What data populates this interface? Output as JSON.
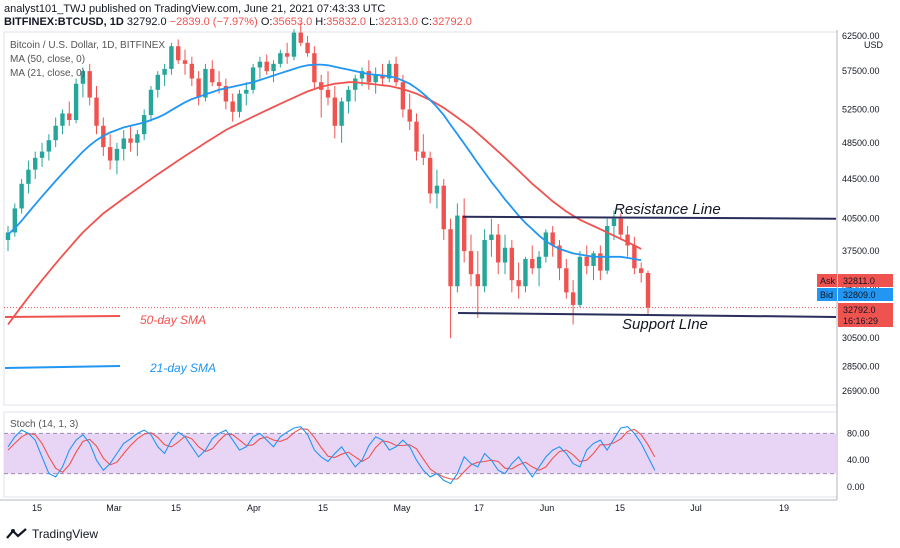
{
  "header": {
    "line1_prefix": "analyst101_TWJ published on TradingView.com, June 21, 2021 07:43:33 UTC",
    "symbol": "BITFINEX:BTCUSD, 1D",
    "last": "32792.0",
    "change": "−2839.0 (−7.97%)",
    "o_label": "O:",
    "o_value": "35653.0",
    "h_label": "H:",
    "h_value": "35832.0",
    "l_label": "L:",
    "l_value": "32313.0",
    "c_label": "C:",
    "c_value": "32792.0"
  },
  "legend": {
    "title": "Bitcoin / U.S. Dollar, 1D, BITFINEX",
    "ma50": "MA (50, close, 0)",
    "ma21": "MA (21, close, 0)",
    "stoch": "Stoch (14, 1, 3)"
  },
  "annotations": {
    "resistance": "Resistance Line",
    "support": "Support LIne",
    "sma50": "50-day SMA",
    "sma21": "21-day SMA"
  },
  "price_tags": {
    "ask_label": "Ask",
    "ask_value": "32811.0",
    "bid_label": "Bid",
    "bid_value": "32809.0",
    "last_value": "32792.0",
    "countdown": "16:16:29",
    "currency": "USD"
  },
  "footer": {
    "brand": "TradingView"
  },
  "colors": {
    "up": "#26a69a",
    "down": "#ef5350",
    "ma50": "#ef5350",
    "ma21": "#2196f3",
    "stochK": "#2196f3",
    "stochD": "#ef5350",
    "band": "#e6d0f5",
    "trend": "#2a2e5a"
  },
  "chart_data": {
    "type": "candlestick",
    "price_axis_ticks": [
      "62500.00",
      "57500.00",
      "52500.00",
      "48500.00",
      "44500.00",
      "40500.00",
      "37500.00",
      "34500.00",
      "30500.00",
      "28500.00",
      "26900.00"
    ],
    "stoch_axis_ticks": [
      "80.00",
      "40.00",
      "0.00"
    ],
    "time_axis_ticks": [
      "15",
      "Mar",
      "15",
      "Apr",
      "15",
      "May",
      "17",
      "Jun",
      "15",
      "Jul",
      "19"
    ],
    "resistance_level": 40500,
    "support_level": 32300,
    "candles": [
      {
        "o": 38500,
        "h": 39800,
        "l": 37500,
        "c": 39200
      },
      {
        "o": 39200,
        "h": 42000,
        "l": 38800,
        "c": 41500
      },
      {
        "o": 41500,
        "h": 44500,
        "l": 41000,
        "c": 44000
      },
      {
        "o": 44000,
        "h": 46500,
        "l": 43000,
        "c": 45500
      },
      {
        "o": 45500,
        "h": 47500,
        "l": 44500,
        "c": 46800
      },
      {
        "o": 46800,
        "h": 48500,
        "l": 45800,
        "c": 47500
      },
      {
        "o": 47500,
        "h": 49500,
        "l": 46500,
        "c": 48800
      },
      {
        "o": 48800,
        "h": 51500,
        "l": 48000,
        "c": 50500
      },
      {
        "o": 50500,
        "h": 52500,
        "l": 49500,
        "c": 52000
      },
      {
        "o": 52000,
        "h": 53500,
        "l": 50500,
        "c": 51200
      },
      {
        "o": 51200,
        "h": 56500,
        "l": 50800,
        "c": 55800
      },
      {
        "o": 55800,
        "h": 58000,
        "l": 54000,
        "c": 57500
      },
      {
        "o": 57500,
        "h": 58500,
        "l": 53000,
        "c": 54000
      },
      {
        "o": 54000,
        "h": 55500,
        "l": 49500,
        "c": 50500
      },
      {
        "o": 50500,
        "h": 51500,
        "l": 47000,
        "c": 48000
      },
      {
        "o": 48000,
        "h": 49500,
        "l": 45500,
        "c": 46500
      },
      {
        "o": 46500,
        "h": 48500,
        "l": 45000,
        "c": 47800
      },
      {
        "o": 47800,
        "h": 50000,
        "l": 46500,
        "c": 49000
      },
      {
        "o": 49000,
        "h": 50500,
        "l": 47500,
        "c": 48500
      },
      {
        "o": 48500,
        "h": 50000,
        "l": 47000,
        "c": 49500
      },
      {
        "o": 49500,
        "h": 52500,
        "l": 48800,
        "c": 51800
      },
      {
        "o": 51800,
        "h": 55500,
        "l": 51000,
        "c": 55000
      },
      {
        "o": 55000,
        "h": 57500,
        "l": 54000,
        "c": 57000
      },
      {
        "o": 57000,
        "h": 58500,
        "l": 55500,
        "c": 57800
      },
      {
        "o": 57800,
        "h": 61500,
        "l": 57000,
        "c": 61000
      },
      {
        "o": 61000,
        "h": 62000,
        "l": 58500,
        "c": 59000
      },
      {
        "o": 59000,
        "h": 60500,
        "l": 57000,
        "c": 58500
      },
      {
        "o": 58500,
        "h": 59500,
        "l": 55500,
        "c": 56500
      },
      {
        "o": 56500,
        "h": 57500,
        "l": 53000,
        "c": 54000
      },
      {
        "o": 54000,
        "h": 58500,
        "l": 53500,
        "c": 57800
      },
      {
        "o": 57800,
        "h": 59000,
        "l": 55500,
        "c": 56000
      },
      {
        "o": 56000,
        "h": 57500,
        "l": 54500,
        "c": 55500
      },
      {
        "o": 55500,
        "h": 56500,
        "l": 52500,
        "c": 53500
      },
      {
        "o": 53500,
        "h": 54500,
        "l": 51000,
        "c": 52200
      },
      {
        "o": 52200,
        "h": 55000,
        "l": 51500,
        "c": 54500
      },
      {
        "o": 54500,
        "h": 56000,
        "l": 53000,
        "c": 55000
      },
      {
        "o": 55000,
        "h": 58500,
        "l": 54500,
        "c": 58000
      },
      {
        "o": 58000,
        "h": 59500,
        "l": 56500,
        "c": 58800
      },
      {
        "o": 58800,
        "h": 59800,
        "l": 57000,
        "c": 57500
      },
      {
        "o": 57500,
        "h": 59000,
        "l": 56000,
        "c": 58500
      },
      {
        "o": 58500,
        "h": 60500,
        "l": 58000,
        "c": 60000
      },
      {
        "o": 60000,
        "h": 61500,
        "l": 58500,
        "c": 59500
      },
      {
        "o": 59500,
        "h": 63500,
        "l": 59000,
        "c": 63000
      },
      {
        "o": 63000,
        "h": 64500,
        "l": 61000,
        "c": 61500
      },
      {
        "o": 61500,
        "h": 62500,
        "l": 59500,
        "c": 60000
      },
      {
        "o": 60000,
        "h": 61000,
        "l": 55000,
        "c": 56000
      },
      {
        "o": 56000,
        "h": 57000,
        "l": 51500,
        "c": 55000
      },
      {
        "o": 55000,
        "h": 57500,
        "l": 53000,
        "c": 54000
      },
      {
        "o": 54000,
        "h": 55500,
        "l": 49000,
        "c": 50500
      },
      {
        "o": 50500,
        "h": 54000,
        "l": 48500,
        "c": 53500
      },
      {
        "o": 53500,
        "h": 55500,
        "l": 52000,
        "c": 55000
      },
      {
        "o": 55000,
        "h": 57000,
        "l": 53500,
        "c": 56500
      },
      {
        "o": 56500,
        "h": 58000,
        "l": 55500,
        "c": 57500
      },
      {
        "o": 57500,
        "h": 59000,
        "l": 55000,
        "c": 56000
      },
      {
        "o": 56000,
        "h": 58000,
        "l": 54500,
        "c": 57000
      },
      {
        "o": 57000,
        "h": 58500,
        "l": 55500,
        "c": 56500
      },
      {
        "o": 56500,
        "h": 59000,
        "l": 56000,
        "c": 58500
      },
      {
        "o": 58500,
        "h": 59500,
        "l": 55500,
        "c": 56000
      },
      {
        "o": 56000,
        "h": 57000,
        "l": 51500,
        "c": 52500
      },
      {
        "o": 52500,
        "h": 54500,
        "l": 50000,
        "c": 51000
      },
      {
        "o": 51000,
        "h": 52000,
        "l": 46500,
        "c": 47500
      },
      {
        "o": 47500,
        "h": 49500,
        "l": 46000,
        "c": 46800
      },
      {
        "o": 46800,
        "h": 47500,
        "l": 42000,
        "c": 43000
      },
      {
        "o": 43000,
        "h": 45500,
        "l": 41500,
        "c": 43800
      },
      {
        "o": 43800,
        "h": 44500,
        "l": 38500,
        "c": 39500
      },
      {
        "o": 39500,
        "h": 40500,
        "l": 30500,
        "c": 34500
      },
      {
        "o": 34500,
        "h": 42000,
        "l": 34000,
        "c": 40800
      },
      {
        "o": 40800,
        "h": 42500,
        "l": 36500,
        "c": 37500
      },
      {
        "o": 37500,
        "h": 39000,
        "l": 34500,
        "c": 35500
      },
      {
        "o": 35500,
        "h": 37500,
        "l": 32000,
        "c": 34500
      },
      {
        "o": 34500,
        "h": 39500,
        "l": 34000,
        "c": 38500
      },
      {
        "o": 38500,
        "h": 40500,
        "l": 37000,
        "c": 39000
      },
      {
        "o": 39000,
        "h": 40000,
        "l": 35500,
        "c": 36500
      },
      {
        "o": 36500,
        "h": 39000,
        "l": 35500,
        "c": 37800
      },
      {
        "o": 37800,
        "h": 38500,
        "l": 34000,
        "c": 35000
      },
      {
        "o": 35000,
        "h": 36500,
        "l": 33500,
        "c": 34500
      },
      {
        "o": 34500,
        "h": 37000,
        "l": 34000,
        "c": 36800
      },
      {
        "o": 36800,
        "h": 38000,
        "l": 35500,
        "c": 36000
      },
      {
        "o": 36000,
        "h": 37500,
        "l": 34500,
        "c": 37000
      },
      {
        "o": 37000,
        "h": 39500,
        "l": 36500,
        "c": 39200
      },
      {
        "o": 39200,
        "h": 39800,
        "l": 37000,
        "c": 38000
      },
      {
        "o": 38000,
        "h": 38500,
        "l": 35000,
        "c": 36000
      },
      {
        "o": 36000,
        "h": 36800,
        "l": 33500,
        "c": 34000
      },
      {
        "o": 34000,
        "h": 35000,
        "l": 31500,
        "c": 33000
      },
      {
        "o": 33000,
        "h": 37500,
        "l": 32800,
        "c": 37000
      },
      {
        "o": 37000,
        "h": 38000,
        "l": 35500,
        "c": 36200
      },
      {
        "o": 36200,
        "h": 37500,
        "l": 35000,
        "c": 37300
      },
      {
        "o": 37300,
        "h": 38000,
        "l": 35000,
        "c": 35800
      },
      {
        "o": 35800,
        "h": 40500,
        "l": 35500,
        "c": 39800
      },
      {
        "o": 39800,
        "h": 41300,
        "l": 38500,
        "c": 40500
      },
      {
        "o": 40500,
        "h": 41000,
        "l": 38500,
        "c": 39000
      },
      {
        "o": 39000,
        "h": 39800,
        "l": 37000,
        "c": 38000
      },
      {
        "o": 38000,
        "h": 38800,
        "l": 35500,
        "c": 36000
      },
      {
        "o": 36000,
        "h": 36500,
        "l": 34800,
        "c": 35600
      },
      {
        "o": 35600,
        "h": 35800,
        "l": 32300,
        "c": 32792
      }
    ],
    "ma21": [
      39000,
      39600,
      40300,
      41100,
      41900,
      42700,
      43500,
      44300,
      45100,
      45900,
      46700,
      47500,
      48200,
      48800,
      49300,
      49700,
      50000,
      50300,
      50500,
      50700,
      50900,
      51200,
      51500,
      51900,
      52400,
      52900,
      53400,
      53800,
      54100,
      54400,
      54700,
      55000,
      55200,
      55400,
      55600,
      55800,
      56000,
      56300,
      56600,
      56900,
      57200,
      57500,
      57800,
      58100,
      58300,
      58400,
      58400,
      58300,
      58100,
      57900,
      57700,
      57500,
      57300,
      57100,
      57000,
      56900,
      56800,
      56600,
      56200,
      55800,
      55200,
      54500,
      53700,
      52800,
      51800,
      50600,
      49500,
      48400,
      47300,
      46200,
      45200,
      44200,
      43300,
      42400,
      41600,
      40800,
      40100,
      39500,
      38900,
      38400,
      38000,
      37700,
      37500,
      37300,
      37200,
      37100,
      37000,
      37000,
      37000,
      37000,
      37000,
      36900,
      36800,
      36700
    ],
    "ma50": [
      31500,
      32200,
      32900,
      33600,
      34300,
      35000,
      35700,
      36400,
      37100,
      37800,
      38500,
      39200,
      39800,
      40400,
      41000,
      41500,
      42000,
      42500,
      43000,
      43500,
      44000,
      44500,
      45000,
      45500,
      46000,
      46500,
      47000,
      47500,
      48000,
      48500,
      49000,
      49500,
      50000,
      50400,
      50800,
      51200,
      51600,
      52000,
      52400,
      52800,
      53200,
      53600,
      54000,
      54400,
      54800,
      55100,
      55400,
      55600,
      55800,
      55900,
      56000,
      56000,
      55900,
      55800,
      55700,
      55600,
      55500,
      55300,
      55100,
      54800,
      54500,
      54100,
      53700,
      53200,
      52700,
      52100,
      51500,
      50900,
      50300,
      49600,
      48900,
      48200,
      47500,
      46800,
      46100,
      45400,
      44700,
      44000,
      43400,
      42800,
      42200,
      41700,
      41200,
      40800,
      40400,
      40100,
      39800,
      39500,
      39200,
      38900,
      38600,
      38300,
      38000,
      37700
    ],
    "stochK": [
      60,
      75,
      85,
      80,
      70,
      45,
      20,
      15,
      30,
      55,
      70,
      78,
      65,
      40,
      25,
      35,
      50,
      65,
      72,
      80,
      85,
      78,
      60,
      50,
      70,
      82,
      75,
      60,
      45,
      55,
      72,
      80,
      85,
      70,
      55,
      60,
      75,
      80,
      70,
      60,
      75,
      82,
      88,
      90,
      78,
      55,
      45,
      38,
      50,
      60,
      45,
      30,
      40,
      62,
      75,
      70,
      55,
      60,
      70,
      60,
      40,
      25,
      15,
      20,
      10,
      5,
      20,
      45,
      35,
      30,
      50,
      40,
      25,
      20,
      35,
      45,
      30,
      15,
      30,
      45,
      55,
      60,
      50,
      35,
      30,
      55,
      65,
      70,
      55,
      72,
      88,
      90,
      80,
      65,
      45,
      25
    ],
    "stochD": [
      55,
      65,
      75,
      80,
      78,
      65,
      45,
      28,
      22,
      33,
      52,
      68,
      71,
      61,
      43,
      33,
      37,
      50,
      62,
      72,
      79,
      81,
      74,
      63,
      60,
      67,
      76,
      72,
      60,
      53,
      57,
      69,
      79,
      78,
      70,
      62,
      63,
      72,
      75,
      70,
      68,
      72,
      81,
      87,
      86,
      74,
      59,
      46,
      44,
      49,
      52,
      45,
      38,
      44,
      59,
      69,
      67,
      62,
      62,
      63,
      57,
      42,
      27,
      20,
      15,
      12,
      12,
      23,
      33,
      37,
      38,
      40,
      38,
      28,
      27,
      33,
      37,
      30,
      25,
      30,
      43,
      53,
      55,
      48,
      38,
      40,
      50,
      63,
      63,
      66,
      72,
      83,
      86,
      78,
      63,
      45
    ]
  }
}
